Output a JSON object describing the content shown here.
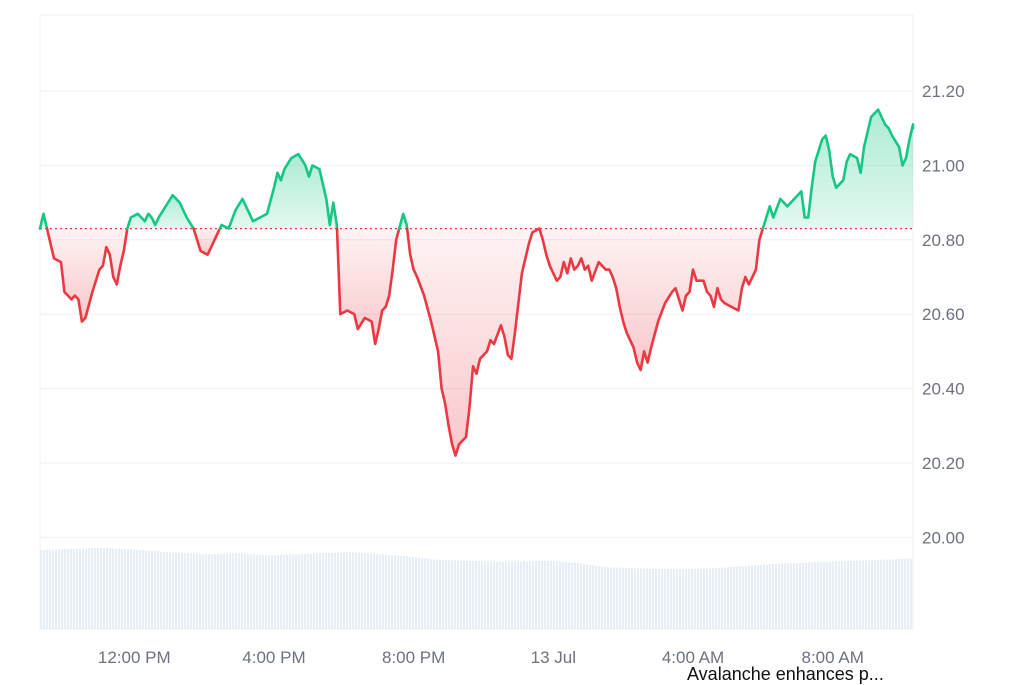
{
  "chart_data": {
    "type": "line",
    "title": "",
    "xlabel": "",
    "ylabel": "",
    "ylim": [
      19.75,
      21.2
    ],
    "baseline": 20.83,
    "y_ticks": [
      "21.20",
      "21.00",
      "20.80",
      "20.60",
      "20.40",
      "20.20",
      "20.00"
    ],
    "x_ticks": [
      "12:00 PM",
      "4:00 PM",
      "8:00 PM",
      "13 Jul",
      "4:00 AM",
      "8:00 AM"
    ],
    "x_tick_hours": [
      2.7,
      6.7,
      10.7,
      14.7,
      18.7,
      22.7
    ],
    "x_range_hours": [
      0,
      25
    ],
    "colors": {
      "up": "#16c784",
      "down": "#ea3943",
      "grid": "#eef0f3",
      "volume": "#e8eef5"
    },
    "grid": true,
    "series": [
      {
        "points": [
          [
            0.0,
            20.83
          ],
          [
            0.1,
            20.87
          ],
          [
            0.2,
            20.83
          ],
          [
            0.4,
            20.75
          ],
          [
            0.6,
            20.74
          ],
          [
            0.7,
            20.66
          ],
          [
            0.9,
            20.64
          ],
          [
            1.0,
            20.65
          ],
          [
            1.1,
            20.64
          ],
          [
            1.2,
            20.58
          ],
          [
            1.3,
            20.59
          ],
          [
            1.5,
            20.66
          ],
          [
            1.7,
            20.72
          ],
          [
            1.8,
            20.73
          ],
          [
            1.9,
            20.78
          ],
          [
            2.0,
            20.76
          ],
          [
            2.1,
            20.7
          ],
          [
            2.2,
            20.68
          ],
          [
            2.3,
            20.73
          ],
          [
            2.4,
            20.77
          ],
          [
            2.5,
            20.83
          ],
          [
            2.6,
            20.86
          ],
          [
            2.8,
            20.87
          ],
          [
            2.9,
            20.86
          ],
          [
            3.0,
            20.85
          ],
          [
            3.1,
            20.87
          ],
          [
            3.2,
            20.86
          ],
          [
            3.3,
            20.84
          ],
          [
            3.4,
            20.86
          ],
          [
            3.6,
            20.89
          ],
          [
            3.8,
            20.92
          ],
          [
            4.0,
            20.9
          ],
          [
            4.2,
            20.86
          ],
          [
            4.4,
            20.83
          ],
          [
            4.6,
            20.77
          ],
          [
            4.8,
            20.76
          ],
          [
            5.0,
            20.8
          ],
          [
            5.2,
            20.84
          ],
          [
            5.4,
            20.83
          ],
          [
            5.6,
            20.88
          ],
          [
            5.8,
            20.91
          ],
          [
            6.0,
            20.87
          ],
          [
            6.1,
            20.85
          ],
          [
            6.3,
            20.86
          ],
          [
            6.5,
            20.87
          ],
          [
            6.7,
            20.94
          ],
          [
            6.8,
            20.98
          ],
          [
            6.9,
            20.96
          ],
          [
            7.0,
            20.99
          ],
          [
            7.2,
            21.02
          ],
          [
            7.4,
            21.03
          ],
          [
            7.6,
            21.0
          ],
          [
            7.7,
            20.97
          ],
          [
            7.8,
            21.0
          ],
          [
            8.0,
            20.99
          ],
          [
            8.2,
            20.91
          ],
          [
            8.3,
            20.84
          ],
          [
            8.4,
            20.9
          ],
          [
            8.5,
            20.84
          ],
          [
            8.6,
            20.6
          ],
          [
            8.8,
            20.61
          ],
          [
            9.0,
            20.6
          ],
          [
            9.1,
            20.56
          ],
          [
            9.3,
            20.59
          ],
          [
            9.5,
            20.58
          ],
          [
            9.6,
            20.52
          ],
          [
            9.7,
            20.56
          ],
          [
            9.8,
            20.61
          ],
          [
            9.9,
            20.62
          ],
          [
            10.0,
            20.65
          ],
          [
            10.1,
            20.72
          ],
          [
            10.2,
            20.8
          ],
          [
            10.4,
            20.87
          ],
          [
            10.5,
            20.84
          ],
          [
            10.6,
            20.76
          ],
          [
            10.7,
            20.72
          ],
          [
            10.8,
            20.7
          ],
          [
            11.0,
            20.65
          ],
          [
            11.2,
            20.58
          ],
          [
            11.4,
            20.5
          ],
          [
            11.5,
            20.4
          ],
          [
            11.6,
            20.36
          ],
          [
            11.7,
            20.3
          ],
          [
            11.8,
            20.25
          ],
          [
            11.9,
            20.22
          ],
          [
            12.0,
            20.25
          ],
          [
            12.2,
            20.27
          ],
          [
            12.3,
            20.35
          ],
          [
            12.4,
            20.46
          ],
          [
            12.5,
            20.44
          ],
          [
            12.6,
            20.48
          ],
          [
            12.8,
            20.5
          ],
          [
            12.9,
            20.53
          ],
          [
            13.0,
            20.52
          ],
          [
            13.2,
            20.57
          ],
          [
            13.3,
            20.54
          ],
          [
            13.4,
            20.49
          ],
          [
            13.5,
            20.48
          ],
          [
            13.6,
            20.55
          ],
          [
            13.7,
            20.63
          ],
          [
            13.8,
            20.71
          ],
          [
            13.9,
            20.75
          ],
          [
            14.0,
            20.79
          ],
          [
            14.1,
            20.82
          ],
          [
            14.3,
            20.83
          ],
          [
            14.4,
            20.8
          ],
          [
            14.5,
            20.76
          ],
          [
            14.6,
            20.73
          ],
          [
            14.7,
            20.71
          ],
          [
            14.8,
            20.69
          ],
          [
            14.9,
            20.7
          ],
          [
            15.0,
            20.74
          ],
          [
            15.1,
            20.71
          ],
          [
            15.2,
            20.75
          ],
          [
            15.3,
            20.72
          ],
          [
            15.4,
            20.73
          ],
          [
            15.5,
            20.75
          ],
          [
            15.6,
            20.72
          ],
          [
            15.7,
            20.73
          ],
          [
            15.8,
            20.69
          ],
          [
            16.0,
            20.74
          ],
          [
            16.1,
            20.73
          ],
          [
            16.2,
            20.72
          ],
          [
            16.3,
            20.72
          ],
          [
            16.4,
            20.7
          ],
          [
            16.5,
            20.67
          ],
          [
            16.6,
            20.62
          ],
          [
            16.7,
            20.58
          ],
          [
            16.8,
            20.55
          ],
          [
            17.0,
            20.51
          ],
          [
            17.1,
            20.47
          ],
          [
            17.2,
            20.45
          ],
          [
            17.3,
            20.5
          ],
          [
            17.4,
            20.47
          ],
          [
            17.5,
            20.51
          ],
          [
            17.7,
            20.58
          ],
          [
            17.9,
            20.63
          ],
          [
            18.1,
            20.66
          ],
          [
            18.2,
            20.67
          ],
          [
            18.3,
            20.64
          ],
          [
            18.4,
            20.61
          ],
          [
            18.5,
            20.65
          ],
          [
            18.6,
            20.66
          ],
          [
            18.7,
            20.72
          ],
          [
            18.8,
            20.69
          ],
          [
            19.0,
            20.69
          ],
          [
            19.1,
            20.66
          ],
          [
            19.2,
            20.65
          ],
          [
            19.3,
            20.62
          ],
          [
            19.4,
            20.67
          ],
          [
            19.5,
            20.64
          ],
          [
            19.6,
            20.63
          ],
          [
            19.8,
            20.62
          ],
          [
            20.0,
            20.61
          ],
          [
            20.1,
            20.67
          ],
          [
            20.2,
            20.7
          ],
          [
            20.3,
            20.68
          ],
          [
            20.5,
            20.72
          ],
          [
            20.6,
            20.8
          ],
          [
            20.7,
            20.83
          ],
          [
            20.9,
            20.89
          ],
          [
            21.0,
            20.86
          ],
          [
            21.2,
            20.91
          ],
          [
            21.4,
            20.89
          ],
          [
            21.6,
            20.91
          ],
          [
            21.8,
            20.93
          ],
          [
            21.9,
            20.86
          ],
          [
            22.0,
            20.86
          ],
          [
            22.1,
            20.94
          ],
          [
            22.2,
            21.01
          ],
          [
            22.4,
            21.07
          ],
          [
            22.5,
            21.08
          ],
          [
            22.6,
            21.04
          ],
          [
            22.7,
            20.97
          ],
          [
            22.8,
            20.94
          ],
          [
            23.0,
            20.96
          ],
          [
            23.1,
            21.01
          ],
          [
            23.2,
            21.03
          ],
          [
            23.4,
            21.02
          ],
          [
            23.5,
            20.98
          ],
          [
            23.6,
            21.05
          ],
          [
            23.7,
            21.09
          ],
          [
            23.8,
            21.13
          ],
          [
            24.0,
            21.15
          ],
          [
            24.1,
            21.13
          ],
          [
            24.2,
            21.11
          ],
          [
            24.3,
            21.1
          ],
          [
            24.4,
            21.08
          ],
          [
            24.6,
            21.05
          ],
          [
            24.7,
            21.0
          ],
          [
            24.8,
            21.02
          ],
          [
            24.9,
            21.07
          ],
          [
            25.0,
            21.11
          ],
          [
            25.0,
            21.1
          ]
        ]
      }
    ],
    "volume": [
      0.74,
      0.75,
      0.76,
      0.75,
      0.73,
      0.71,
      0.7,
      0.71,
      0.69,
      0.7,
      0.71,
      0.72,
      0.7,
      0.68,
      0.65,
      0.64,
      0.63,
      0.63,
      0.64,
      0.62,
      0.58,
      0.57,
      0.56,
      0.56,
      0.57,
      0.59,
      0.61,
      0.62,
      0.63,
      0.64,
      0.65,
      0.66
    ]
  },
  "caption": "Avalanche enhances p..."
}
